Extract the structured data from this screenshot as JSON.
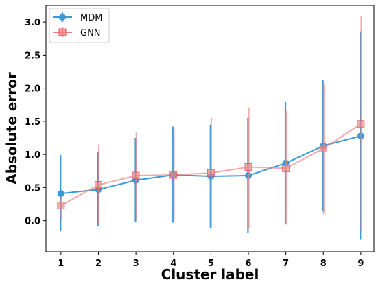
{
  "chart_data": {
    "type": "line",
    "xlabel": "Cluster label",
    "ylabel": "Absolute error",
    "x": [
      1,
      2,
      3,
      4,
      5,
      6,
      7,
      8,
      9
    ],
    "xlim": [
      0.6,
      9.35
    ],
    "ylim": [
      -0.47,
      3.25
    ],
    "xticks": [
      "1",
      "2",
      "3",
      "4",
      "5",
      "6",
      "7",
      "8",
      "9"
    ],
    "yticks": [
      "0.0",
      "0.5",
      "1.0",
      "1.5",
      "2.0",
      "2.5",
      "3.0"
    ],
    "ytick_values": [
      0.0,
      0.5,
      1.0,
      1.5,
      2.0,
      2.5,
      3.0
    ],
    "grid": false,
    "legend_position": "top-left",
    "series": [
      {
        "name": "MDM",
        "marker": "circle",
        "color": "#3a9ad9",
        "values": [
          0.41,
          0.47,
          0.61,
          0.69,
          0.67,
          0.68,
          0.87,
          1.13,
          1.28
        ],
        "err_low": [
          -0.16,
          -0.08,
          -0.02,
          -0.03,
          -0.11,
          -0.19,
          -0.06,
          0.14,
          -0.29
        ],
        "err_high": [
          0.99,
          1.04,
          1.25,
          1.42,
          1.45,
          1.55,
          1.8,
          2.12,
          2.86
        ]
      },
      {
        "name": "GNN",
        "marker": "square",
        "color": "#f08080",
        "values": [
          0.23,
          0.54,
          0.68,
          0.69,
          0.72,
          0.81,
          0.79,
          1.09,
          1.46
        ],
        "err_low": [
          0.02,
          -0.06,
          0.03,
          0.0,
          -0.1,
          -0.11,
          -0.04,
          0.1,
          -0.16
        ],
        "err_high": [
          0.36,
          1.14,
          1.34,
          1.39,
          1.55,
          1.71,
          1.66,
          2.06,
          3.09
        ]
      }
    ]
  }
}
